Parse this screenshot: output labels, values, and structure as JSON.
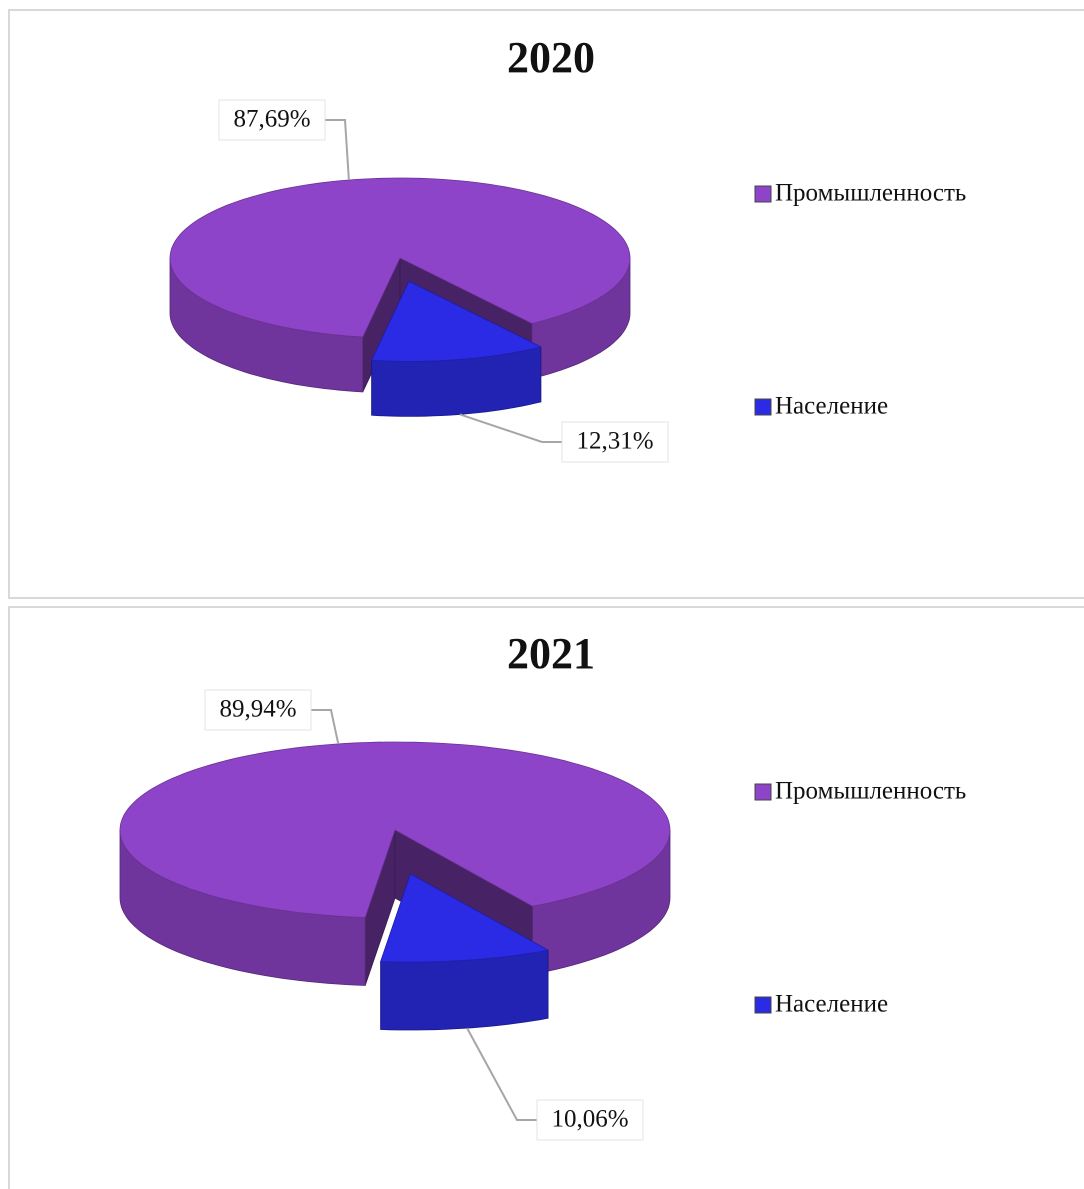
{
  "chart_data": [
    {
      "type": "pie",
      "title": "2020",
      "categories": [
        "Промышленность",
        "Население"
      ],
      "values": [
        87.69,
        12.31
      ],
      "value_labels": [
        "87,69%",
        "12,31%"
      ],
      "colors": [
        "#8e44c8",
        "#2b2be6"
      ]
    },
    {
      "type": "pie",
      "title": "2021",
      "categories": [
        "Промышленность",
        "Население"
      ],
      "values": [
        89.94,
        10.06
      ],
      "value_labels": [
        "89,94%",
        "10,06%"
      ],
      "colors": [
        "#8e44c8",
        "#2b2be6"
      ]
    }
  ]
}
